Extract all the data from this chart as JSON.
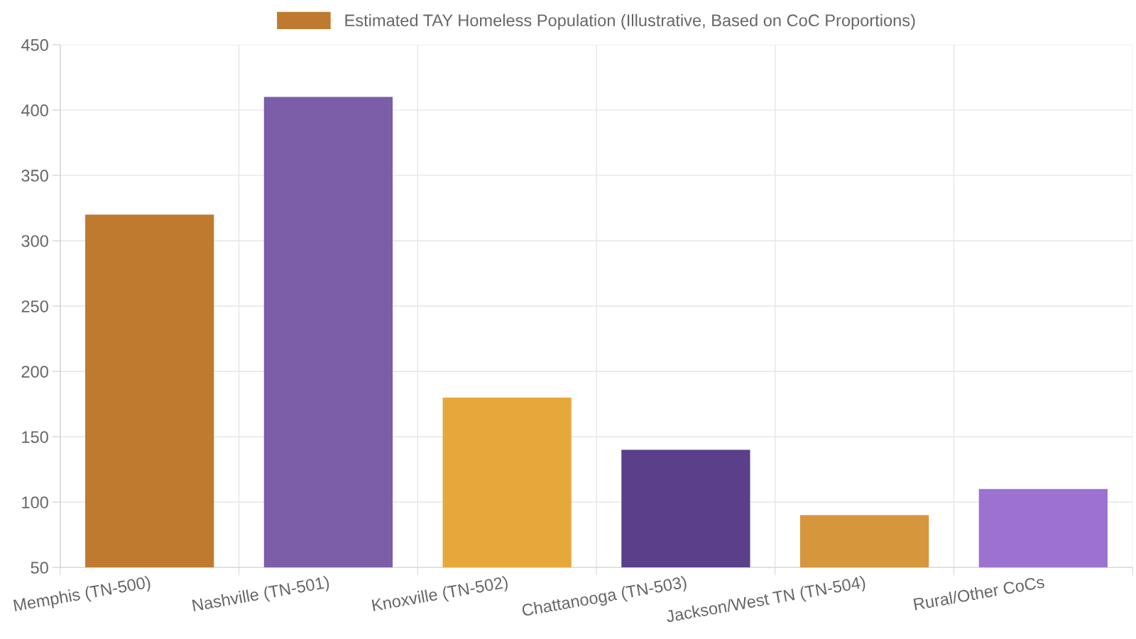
{
  "chart_data": {
    "type": "bar",
    "categories": [
      "Memphis (TN-500)",
      "Nashville (TN-501)",
      "Knoxville (TN-502)",
      "Chattanooga (TN-503)",
      "Jackson/West TN (TN-504)",
      "Rural/Other CoCs"
    ],
    "series": [
      {
        "name": "Estimated TAY Homeless Population (Illustrative, Based on CoC Proportions)",
        "colors": [
          "#c07a2f",
          "#7b5ea7",
          "#e6a83a",
          "#5b3f8a",
          "#d6963c",
          "#9b72cf"
        ],
        "values": [
          320,
          410,
          180,
          140,
          90,
          110
        ]
      }
    ],
    "ylim": [
      50,
      450
    ],
    "yticks": [
      50,
      100,
      150,
      200,
      250,
      300,
      350,
      400,
      450
    ],
    "grid": true,
    "legend": "top"
  }
}
